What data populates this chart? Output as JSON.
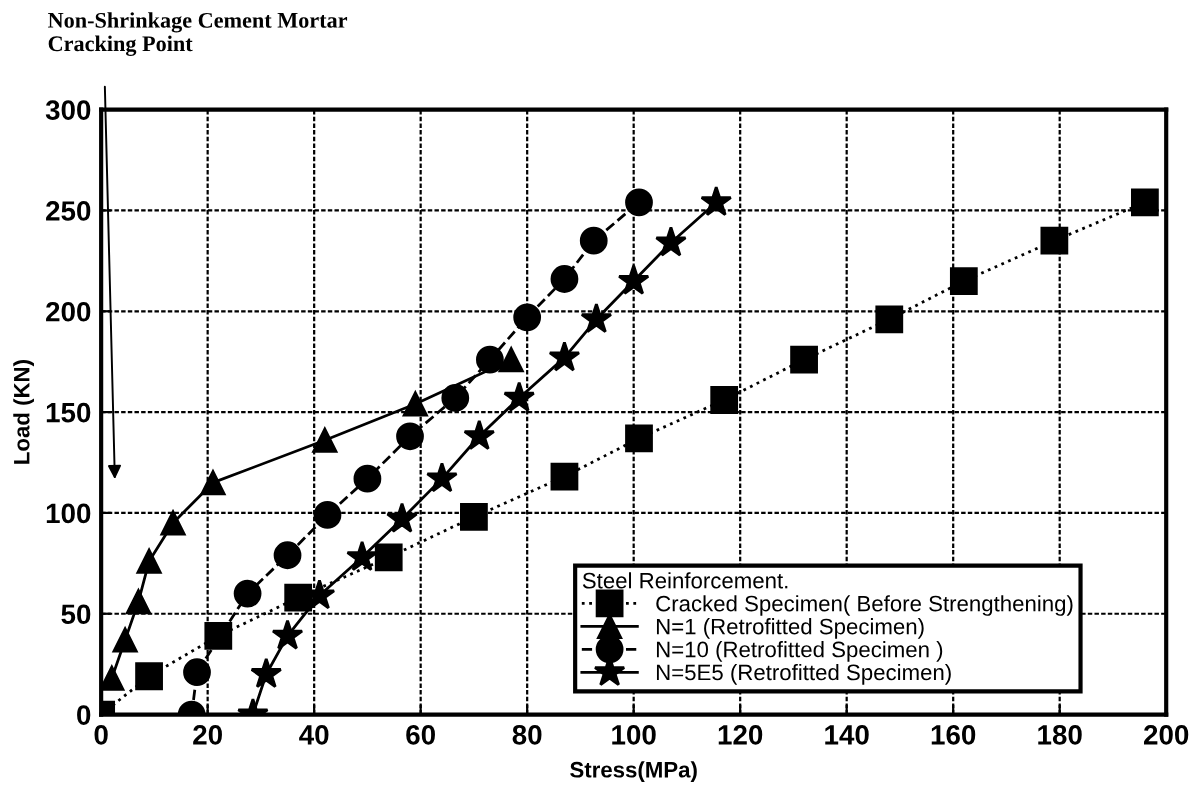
{
  "chart_data": {
    "type": "line",
    "xlabel": "Stress(MPa)",
    "ylabel": "Load (KN)",
    "legend_title": "Steel Reinforcement.",
    "legend": "bottom right",
    "grid": true,
    "xlim": [
      0,
      200
    ],
    "ylim": [
      0,
      300
    ],
    "xticks": [
      0,
      20,
      40,
      60,
      80,
      100,
      120,
      140,
      160,
      180,
      200
    ],
    "yticks": [
      0,
      50,
      100,
      150,
      200,
      250,
      300
    ],
    "annotations": [
      "Non-Shrinkage Cement Mortar\nCracking Point"
    ],
    "series": [
      {
        "name": "Cracked Specimen( Before Strengthening)",
        "color": "#000000",
        "marker": "square",
        "line_style": "dotted",
        "x": [
          0,
          9,
          22,
          37,
          54,
          70,
          87,
          101,
          117,
          132,
          148,
          162,
          179,
          196
        ],
        "values": [
          0,
          19,
          39,
          58,
          78,
          98,
          118,
          137,
          156,
          176,
          196,
          215,
          235,
          254
        ]
      },
      {
        "name": "N=1 (Retrofitted Specimen)",
        "color": "#000000",
        "marker": "triangle",
        "line_style": "solid",
        "x": [
          2,
          4.5,
          7,
          9,
          13.5,
          21,
          42,
          59,
          77
        ],
        "values": [
          18,
          37,
          56,
          76,
          95,
          115,
          136,
          154,
          176
        ]
      },
      {
        "name": "N=10 (Retrofitted Specimen )",
        "color": "#000000",
        "marker": "circle",
        "line_style": "dashed",
        "x": [
          17,
          18,
          27.5,
          35,
          42.5,
          50,
          58,
          66.5,
          73,
          80,
          87,
          92.5,
          101
        ],
        "values": [
          0,
          21,
          60,
          79,
          99,
          117,
          138,
          157,
          176,
          197,
          216,
          235,
          254
        ]
      },
      {
        "name": "N=5E5 (Retrofitted Specimen)",
        "color": "#000000",
        "marker": "star",
        "line_style": "solid",
        "x": [
          28.5,
          31,
          35,
          41,
          49,
          56.5,
          64,
          71,
          78.5,
          87,
          93,
          100,
          107,
          115.5
        ],
        "values": [
          0,
          20,
          39,
          59,
          78,
          97,
          117,
          138,
          157,
          177,
          196,
          215,
          234,
          254
        ]
      }
    ]
  }
}
